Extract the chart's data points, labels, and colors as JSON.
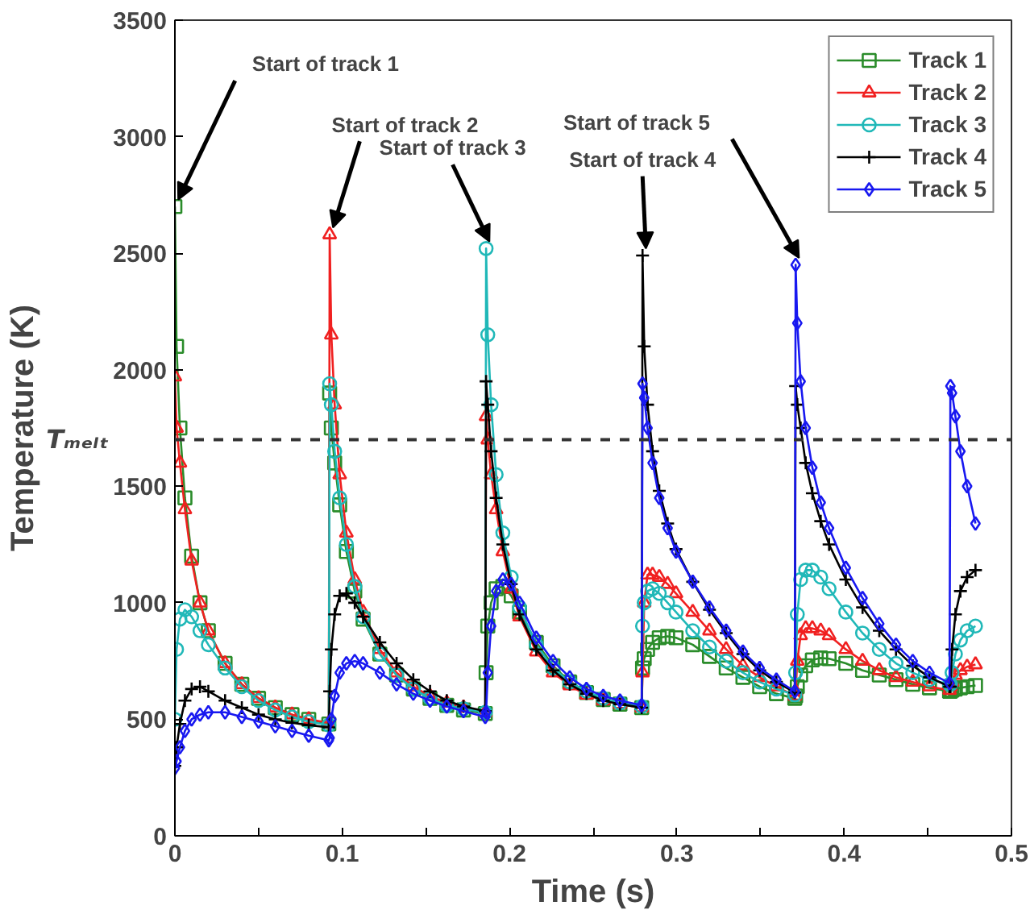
{
  "chart_data": {
    "type": "line",
    "xlabel": "Time (s)",
    "ylabel": "Temperature (K)",
    "x": [
      0,
      0.001,
      0.003,
      0.006,
      0.01,
      0.015,
      0.02,
      0.03,
      0.04,
      0.05,
      0.06,
      0.07,
      0.08,
      0.092,
      0.0925,
      0.0935,
      0.0955,
      0.0985,
      0.1025,
      0.1075,
      0.1125,
      0.1225,
      0.1325,
      0.1425,
      0.1525,
      0.1625,
      0.1725,
      0.1855,
      0.186,
      0.187,
      0.189,
      0.192,
      0.196,
      0.201,
      0.206,
      0.216,
      0.226,
      0.236,
      0.246,
      0.256,
      0.266,
      0.279,
      0.2795,
      0.2805,
      0.2825,
      0.2855,
      0.2895,
      0.2945,
      0.2995,
      0.3095,
      0.3195,
      0.3295,
      0.3395,
      0.3495,
      0.3595,
      0.3705,
      0.371,
      0.372,
      0.374,
      0.377,
      0.381,
      0.386,
      0.391,
      0.401,
      0.411,
      0.421,
      0.431,
      0.441,
      0.451,
      0.463,
      0.4635,
      0.4645,
      0.4665,
      0.4695,
      0.4735,
      0.4785
    ],
    "series": [
      {
        "name": "Track 1",
        "color": "#2a8c2a",
        "marker": "square",
        "values": [
          2700,
          2100,
          1750,
          1450,
          1200,
          1000,
          880,
          740,
          650,
          590,
          550,
          520,
          500,
          480,
          1900,
          1750,
          1600,
          1420,
          1220,
          1050,
          930,
          780,
          690,
          630,
          590,
          560,
          540,
          525,
          700,
          900,
          1000,
          1060,
          1070,
          1030,
          960,
          830,
          730,
          660,
          615,
          585,
          565,
          550,
          720,
          760,
          800,
          830,
          850,
          856,
          850,
          820,
          770,
          720,
          680,
          640,
          610,
          590,
          600,
          640,
          690,
          730,
          755,
          763,
          760,
          740,
          710,
          690,
          670,
          650,
          635,
          620,
          620,
          625,
          630,
          635,
          640,
          645
        ]
      },
      {
        "name": "Track 2",
        "color": "#f02020",
        "marker": "triangle",
        "values": [
          1970,
          1750,
          1600,
          1400,
          1180,
          1000,
          880,
          740,
          650,
          590,
          550,
          520,
          500,
          485,
          2580,
          2150,
          1850,
          1550,
          1300,
          1100,
          960,
          800,
          700,
          640,
          600,
          570,
          550,
          530,
          1800,
          1700,
          1550,
          1400,
          1220,
          1060,
          940,
          790,
          700,
          645,
          605,
          580,
          565,
          550,
          700,
          1000,
          1120,
          1120,
          1110,
          1080,
          1040,
          960,
          880,
          800,
          730,
          680,
          640,
          600,
          620,
          750,
          860,
          890,
          890,
          880,
          860,
          800,
          750,
          710,
          680,
          660,
          640,
          625,
          640,
          660,
          690,
          710,
          725,
          735
        ]
      },
      {
        "name": "Track 3",
        "color": "#20b8b8",
        "marker": "circle",
        "values": [
          500,
          800,
          930,
          970,
          940,
          880,
          820,
          720,
          640,
          580,
          540,
          510,
          490,
          475,
          1940,
          1850,
          1650,
          1450,
          1250,
          1070,
          940,
          780,
          690,
          630,
          590,
          560,
          545,
          530,
          2520,
          2150,
          1850,
          1550,
          1300,
          1110,
          980,
          820,
          720,
          660,
          620,
          590,
          570,
          555,
          900,
          1000,
          1050,
          1060,
          1040,
          1000,
          960,
          880,
          810,
          750,
          700,
          660,
          630,
          605,
          700,
          950,
          1100,
          1140,
          1140,
          1110,
          1060,
          960,
          870,
          800,
          740,
          700,
          670,
          650,
          650,
          700,
          780,
          840,
          880,
          900
        ]
      },
      {
        "name": "Track 4",
        "color": "#000000",
        "marker": "cross",
        "values": [
          300,
          380,
          480,
          580,
          630,
          640,
          620,
          580,
          550,
          520,
          500,
          485,
          475,
          465,
          620,
          800,
          950,
          1030,
          1040,
          1000,
          940,
          830,
          740,
          670,
          620,
          580,
          555,
          535,
          1950,
          1850,
          1650,
          1450,
          1250,
          1080,
          950,
          800,
          710,
          650,
          610,
          580,
          565,
          550,
          2490,
          2100,
          1850,
          1650,
          1480,
          1340,
          1230,
          1090,
          970,
          870,
          780,
          710,
          660,
          615,
          1930,
          1850,
          1750,
          1600,
          1470,
          1350,
          1250,
          1100,
          980,
          880,
          800,
          730,
          680,
          640,
          640,
          800,
          950,
          1050,
          1110,
          1140
        ]
      },
      {
        "name": "Track 5",
        "color": "#1818f0",
        "marker": "diamond",
        "values": [
          290,
          320,
          380,
          450,
          500,
          520,
          530,
          530,
          510,
          490,
          470,
          450,
          430,
          410,
          420,
          500,
          600,
          700,
          740,
          750,
          740,
          700,
          650,
          610,
          580,
          555,
          535,
          510,
          530,
          700,
          900,
          1050,
          1100,
          1080,
          1000,
          850,
          750,
          680,
          630,
          600,
          580,
          560,
          1940,
          1880,
          1750,
          1600,
          1450,
          1320,
          1220,
          1090,
          980,
          880,
          790,
          720,
          670,
          620,
          2450,
          2200,
          1950,
          1750,
          1580,
          1430,
          1320,
          1150,
          1020,
          910,
          820,
          750,
          700,
          655,
          1930,
          1900,
          1800,
          1650,
          1500,
          1340
        ]
      }
    ],
    "xlim": [
      0,
      0.5
    ],
    "xticks": [
      0,
      {
        "value": 0.05,
        "label": null
      },
      0.1,
      {
        "value": 0.15,
        "label": null
      },
      0.2,
      {
        "value": 0.25,
        "label": null
      },
      0.3,
      {
        "value": 0.35,
        "label": null
      },
      0.4,
      {
        "value": 0.45,
        "label": null
      },
      0.5
    ],
    "ylim": [
      0,
      3500
    ],
    "yticks": [
      0,
      500,
      1000,
      1500,
      2000,
      2500,
      3000,
      3500
    ],
    "ref_lines": [
      {
        "axis": "y",
        "value": 1700,
        "label": "Tₘₑₗₜ",
        "color": "#333333",
        "line_style": "dashed"
      }
    ],
    "annotations": [
      {
        "text": "Start of track 1",
        "x": 0,
        "y": 2700
      },
      {
        "text": "Start of track 2",
        "x": 0.0925,
        "y": 2580
      },
      {
        "text": "Start of track 3",
        "x": 0.186,
        "y": 2520
      },
      {
        "text": "Start of track 4",
        "x": 0.2795,
        "y": 2490
      },
      {
        "text": "Start of track 5",
        "x": 0.371,
        "y": 2450
      }
    ],
    "legend": "top right",
    "grid": false,
    "line_style": "solid"
  }
}
